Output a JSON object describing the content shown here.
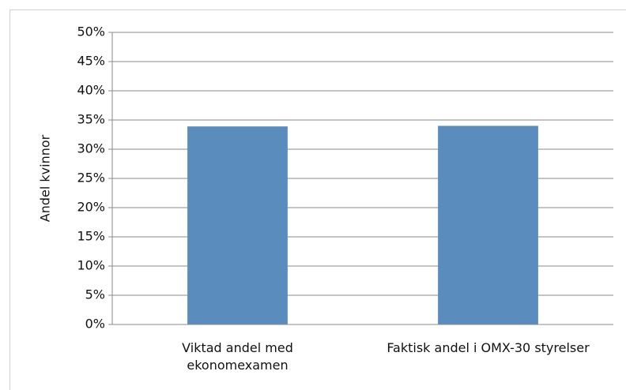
{
  "chart_data": {
    "type": "bar",
    "y_label": "Andel kvinnor",
    "categories": [
      "Viktad andel med ekonomexamen",
      "Faktisk andel i OMX-30 styrelser"
    ],
    "values": [
      33.9,
      34.0
    ],
    "color": "#5a8cbe",
    "ylim": [
      0,
      50
    ],
    "yticks": [
      {
        "value": 0,
        "label": "0%"
      },
      {
        "value": 5,
        "label": "5%"
      },
      {
        "value": 10,
        "label": "10%"
      },
      {
        "value": 15,
        "label": "15%"
      },
      {
        "value": 20,
        "label": "20%"
      },
      {
        "value": 25,
        "label": "25%"
      },
      {
        "value": 30,
        "label": "30%"
      },
      {
        "value": 35,
        "label": "35%"
      },
      {
        "value": 40,
        "label": "40%"
      },
      {
        "value": 45,
        "label": "45%"
      },
      {
        "value": 50,
        "label": "50%"
      }
    ],
    "grid": true
  }
}
